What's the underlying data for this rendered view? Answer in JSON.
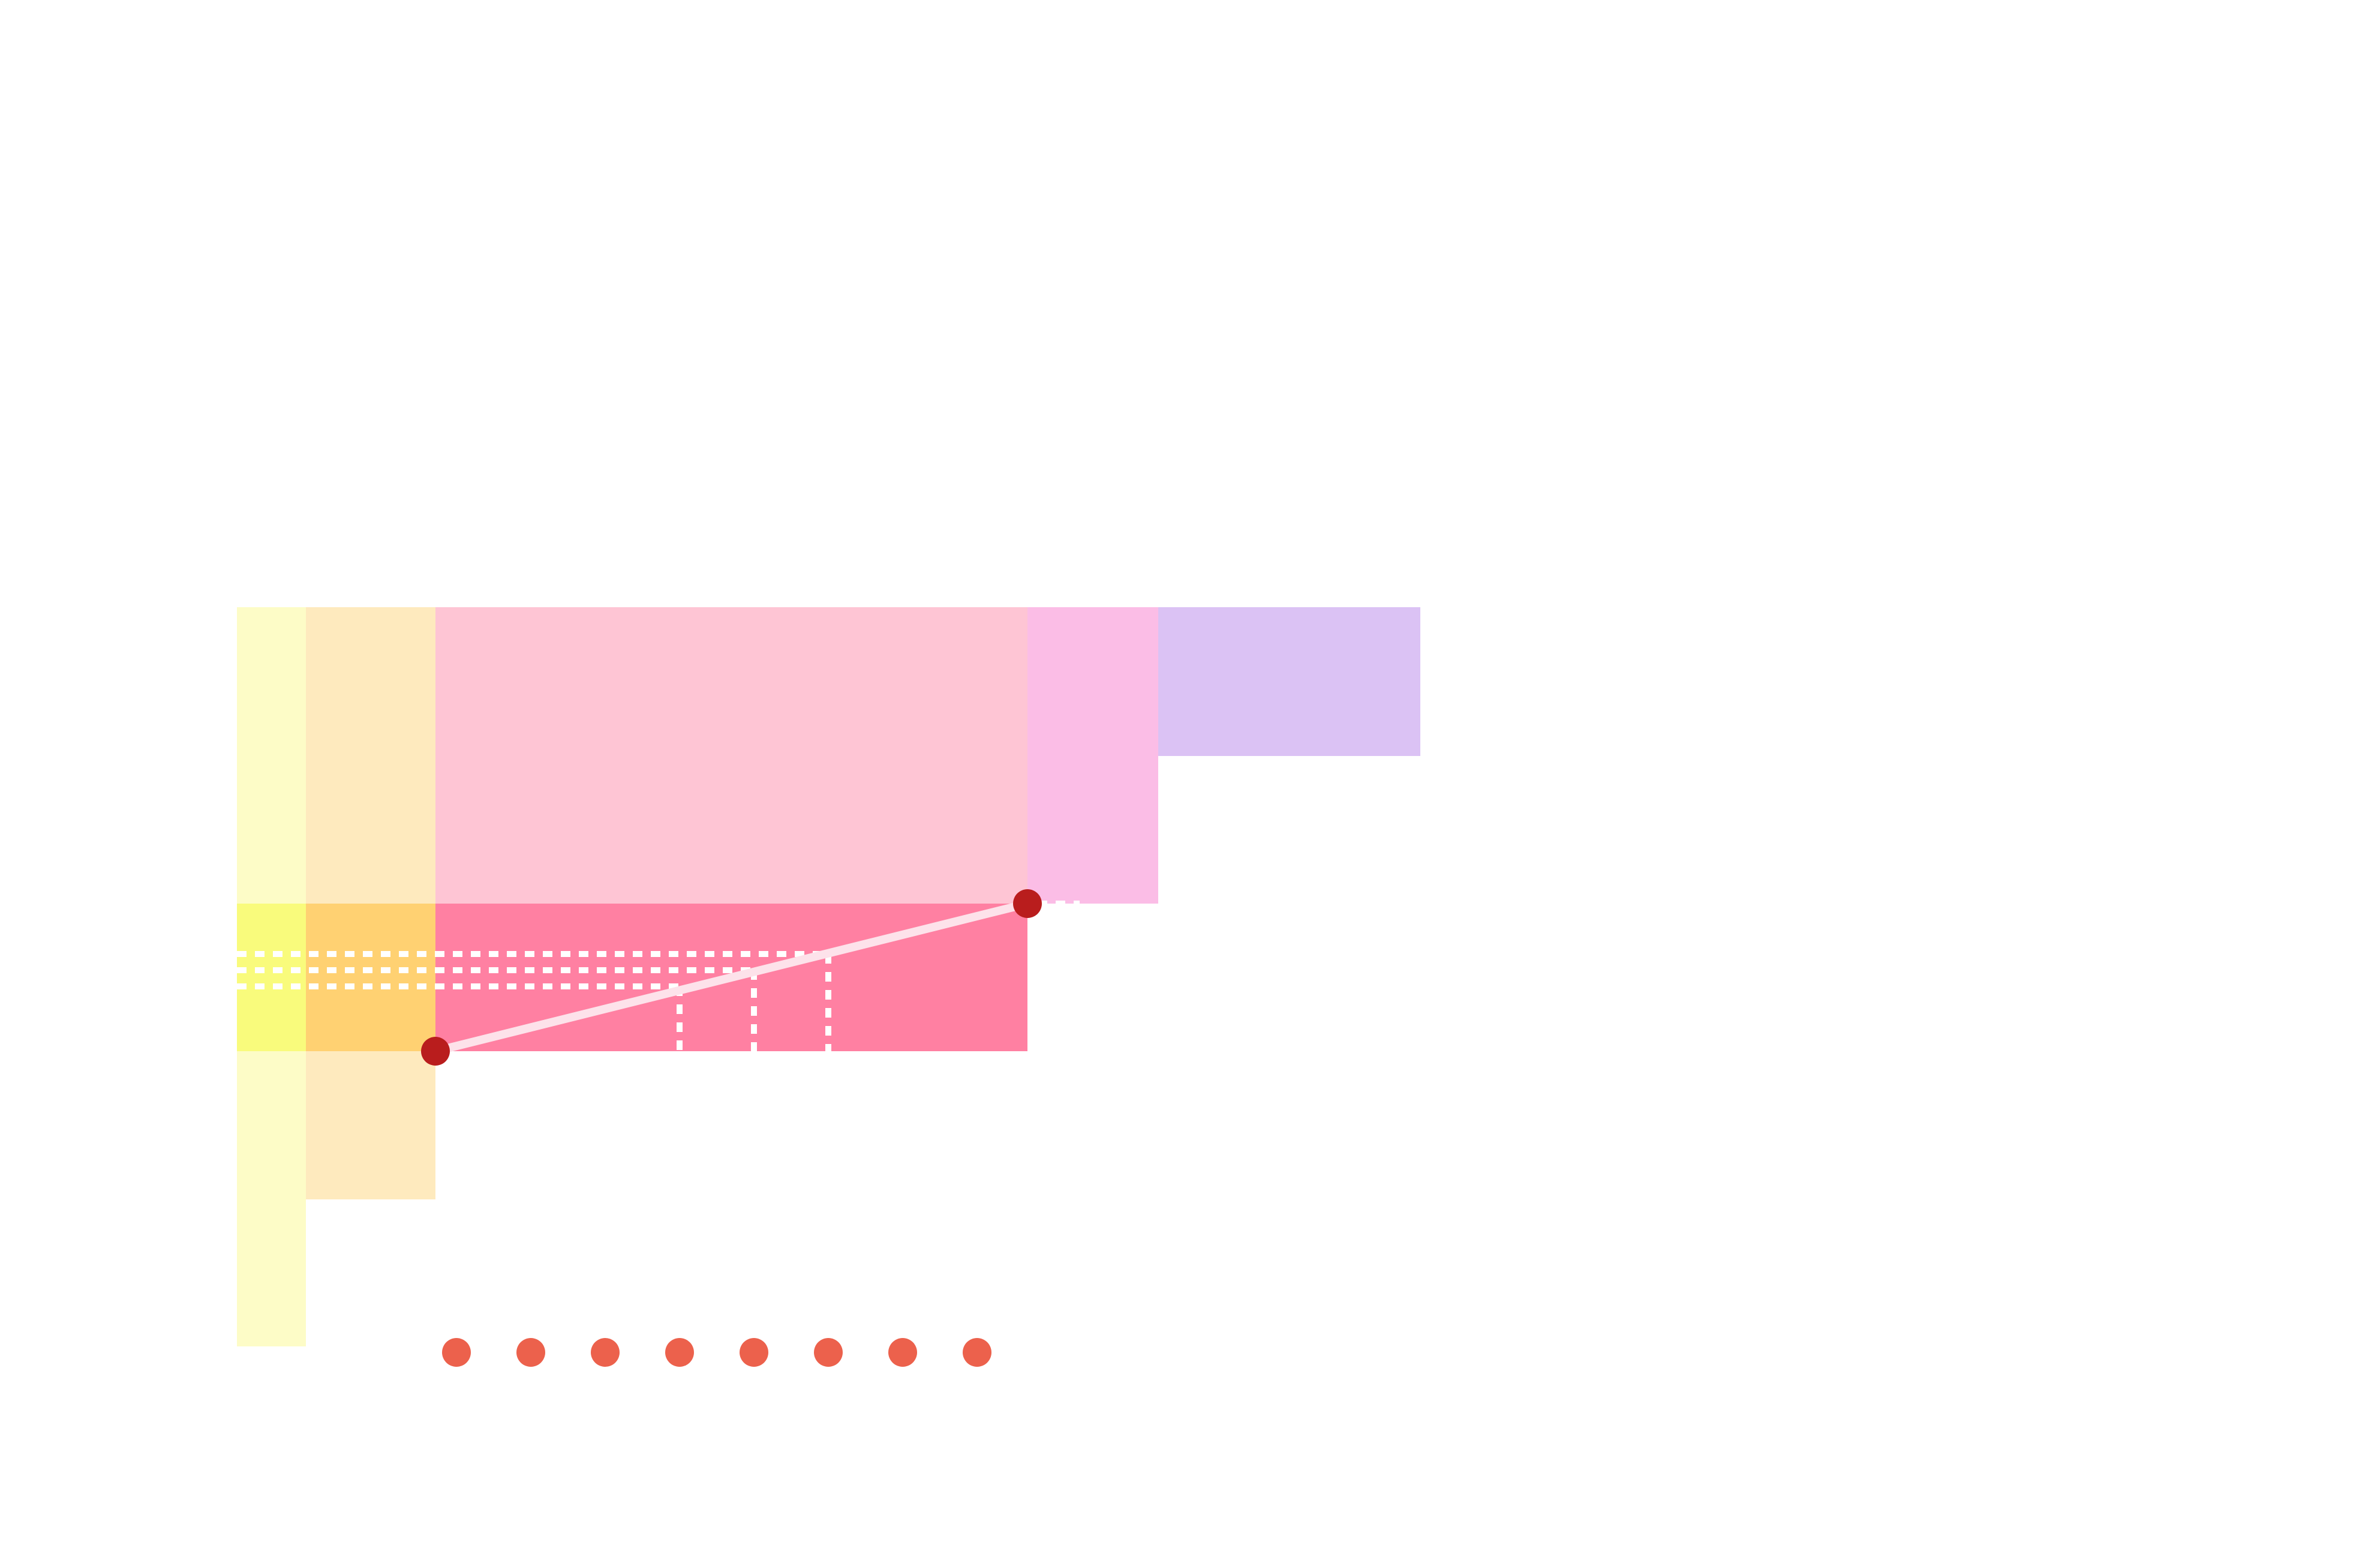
{
  "diagram": {
    "colors": {
      "background": "#ffffff",
      "pale_yellow": "#fdfcc7",
      "pale_peach": "#feeabe",
      "pale_pink": "#fec5d4",
      "pale_magenta": "#fbbde6",
      "pale_purple": "#dbc2f4",
      "bright_yellow": "#f9fb7c",
      "bright_orange": "#ffd172",
      "bright_pink": "#ff80a2",
      "endpoint_dot": "#b91d1d",
      "row_dot": "#ec614c",
      "connector_line": "#fde2ea",
      "dashed_guides": "#ffffff"
    },
    "shapes": [
      "pale-yellow-column",
      "pale-peach-column",
      "pale-pink-block",
      "pale-magenta-block",
      "pale-purple-block",
      "bright-yellow-band",
      "bright-orange-band",
      "bright-pink-band"
    ],
    "connector": {
      "from": "lower-left-endpoint",
      "to": "upper-right-endpoint"
    },
    "row_of_dots_count": 8
  }
}
